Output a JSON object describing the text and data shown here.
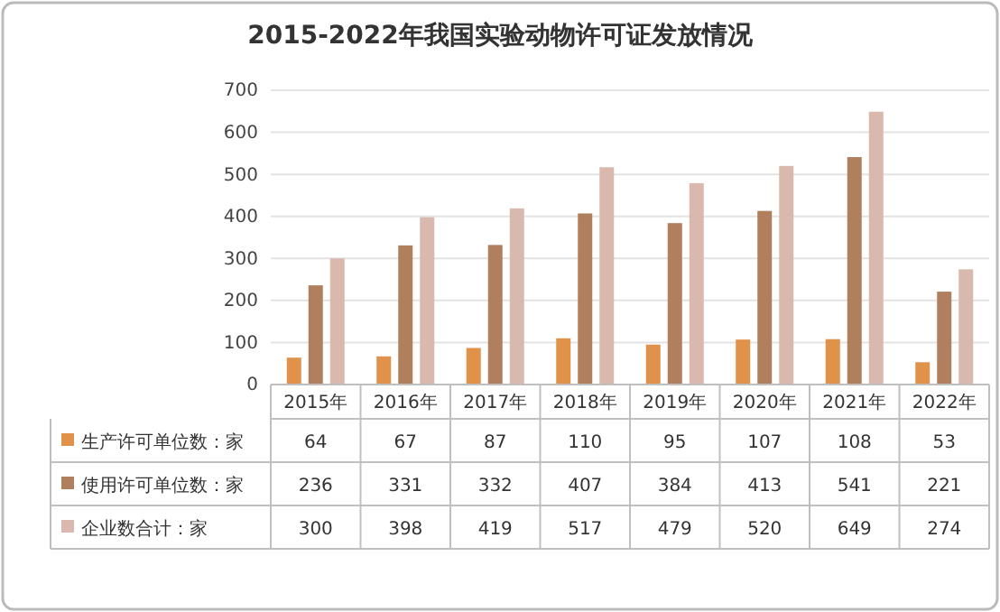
{
  "chart_data": {
    "type": "bar",
    "title": "2015-2022年我国实验动物许可证发放情况",
    "categories": [
      "2015年",
      "2016年",
      "2017年",
      "2018年",
      "2019年",
      "2020年",
      "2021年",
      "2022年"
    ],
    "series": [
      {
        "name": "生产许可单位数：家",
        "color": "#e0914a",
        "values": [
          64,
          67,
          87,
          110,
          95,
          107,
          108,
          53
        ]
      },
      {
        "name": "使用许可单位数：家",
        "color": "#b07f5e",
        "values": [
          236,
          331,
          332,
          407,
          384,
          413,
          541,
          221
        ]
      },
      {
        "name": "企业数合计：家",
        "color": "#d9b8ae",
        "values": [
          300,
          398,
          419,
          517,
          479,
          520,
          649,
          274
        ]
      }
    ],
    "ylim": [
      0,
      700
    ],
    "yticks": [
      0,
      100,
      200,
      300,
      400,
      500,
      600,
      700
    ],
    "grid": "y",
    "data_labels": true,
    "legend": "bottom"
  }
}
